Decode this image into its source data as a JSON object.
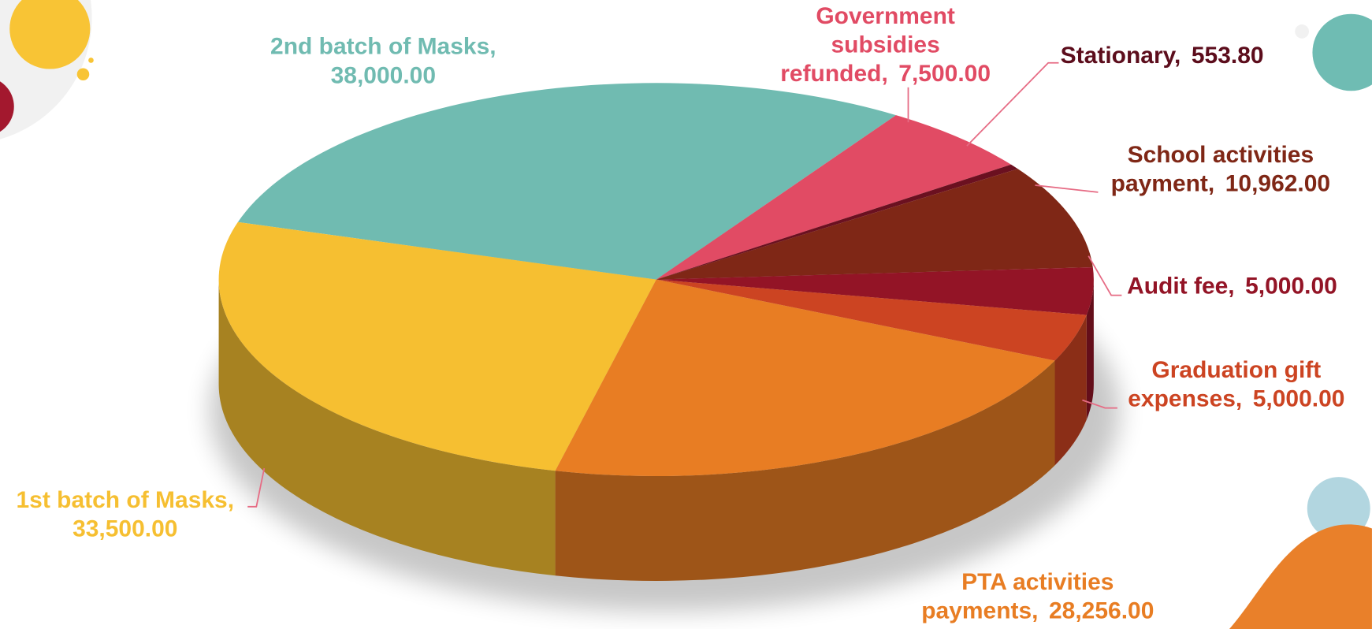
{
  "chart_data": {
    "type": "pie",
    "categories": [
      "2nd batch of Masks,",
      "Government subsidies refunded,",
      "Stationary,",
      "School activities payment,",
      "Audit fee,",
      "Graduation gift expenses,",
      "PTA activities payments,",
      "1st batch of Masks,"
    ],
    "values": [
      38000,
      7500,
      553.8,
      10962,
      5000,
      5000,
      28256,
      33500
    ],
    "value_labels": [
      "38,000.00",
      "7,500.00",
      "553.80",
      "10,962.00",
      "5,000.00",
      "5,000.00",
      "28,256.00",
      "33,500.00"
    ],
    "colors": [
      "#70bbb1",
      "#e14b64",
      "#6b1020",
      "#7f2716",
      "#931426",
      "#cc4422",
      "#e87d23",
      "#f6bf31"
    ]
  }
}
